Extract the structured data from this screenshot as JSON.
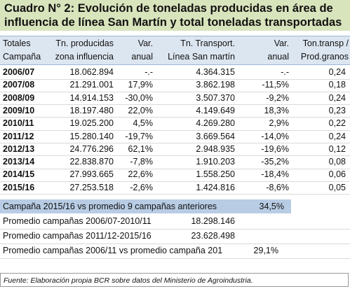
{
  "title": {
    "line1": "Cuadro N° 2:  Evolución de toneladas producidas en área de",
    "line2": "influencia de línea San Martín y total toneladas transportadas"
  },
  "table": {
    "header": [
      [
        "Totales",
        "Tn. producidas",
        "Var.",
        "Tn. Transport.",
        "Var.",
        "Ton.transp /"
      ],
      [
        "Campaña",
        "zona  influencia",
        "anual",
        "Línea San martín",
        "anual",
        "Prod.granos"
      ]
    ],
    "rows": [
      [
        "2006/07",
        "18.062.894",
        "-.-",
        "4.364.315",
        "-.-",
        "0,24"
      ],
      [
        "2007/08",
        "21.291.001",
        "17,9%",
        "3.862.198",
        "-11,5%",
        "0,18"
      ],
      [
        "2008/09",
        "14.914.153",
        "-30,0%",
        "3.507.370",
        "-9,2%",
        "0,24"
      ],
      [
        "2009/10",
        "18.197.480",
        "22,0%",
        "4.149.649",
        "18,3%",
        "0,23"
      ],
      [
        "2010/11",
        "19.025.200",
        "4,5%",
        "4.269.280",
        "2,9%",
        "0,22"
      ],
      [
        "2011/12",
        "15.280.140",
        "-19,7%",
        "3.669.564",
        "-14,0%",
        "0,24"
      ],
      [
        "2012/13",
        "24.776.296",
        "62,1%",
        "2.948.935",
        "-19,6%",
        "0,12"
      ],
      [
        "2013/14",
        "22.838.870",
        "-7,8%",
        "1.910.203",
        "-35,2%",
        "0,08"
      ],
      [
        "2014/15",
        "27.993.665",
        "22,6%",
        "1.558.250",
        "-18,4%",
        "0,06"
      ],
      [
        "2015/16",
        "27.253.518",
        "-2,6%",
        "1.424.816",
        "-8,6%",
        "0,05"
      ]
    ]
  },
  "summary": [
    {
      "label": "Campaña 2015/16 vs promedio 9 campañas anteriores",
      "value": "34,5%"
    },
    {
      "label": "Promedio campañas 2006/07-2010/11",
      "value": "18.298.146"
    },
    {
      "label": "Promedio campañas  2011/12-2015/16",
      "value": "23.628.498"
    },
    {
      "label": "Promedio campañas 2006/11 vs promedio campaña 201",
      "value": "29,1%"
    }
  ],
  "footer": "Fuente: Elaboración propia BCR sobre datos del Ministerio de Agroindustria."
}
